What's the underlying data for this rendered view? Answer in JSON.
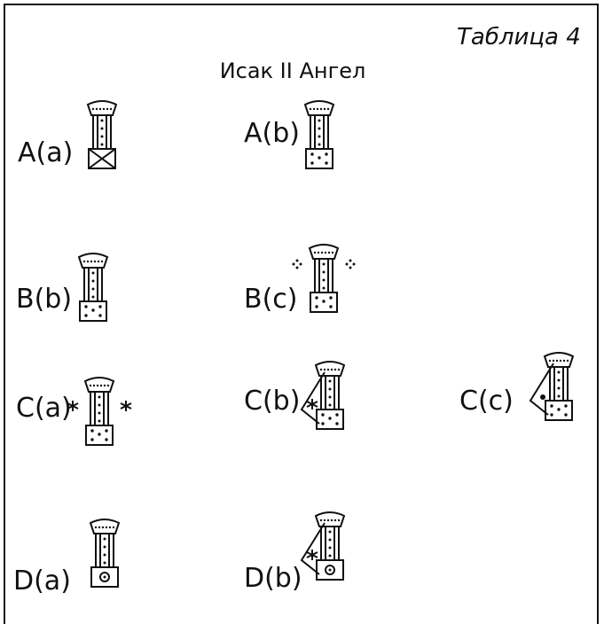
{
  "header": {
    "table_label": "Таблица 4",
    "title": "Исак II Ангел"
  },
  "items": [
    {
      "label": "A(a)"
    },
    {
      "label": "A(b)"
    },
    {
      "label": "B(b)"
    },
    {
      "label": "B(c)"
    },
    {
      "label": "C(a)"
    },
    {
      "label": "C(b)"
    },
    {
      "label": "C(c)"
    },
    {
      "label": "D(a)"
    },
    {
      "label": "D(b)"
    }
  ]
}
